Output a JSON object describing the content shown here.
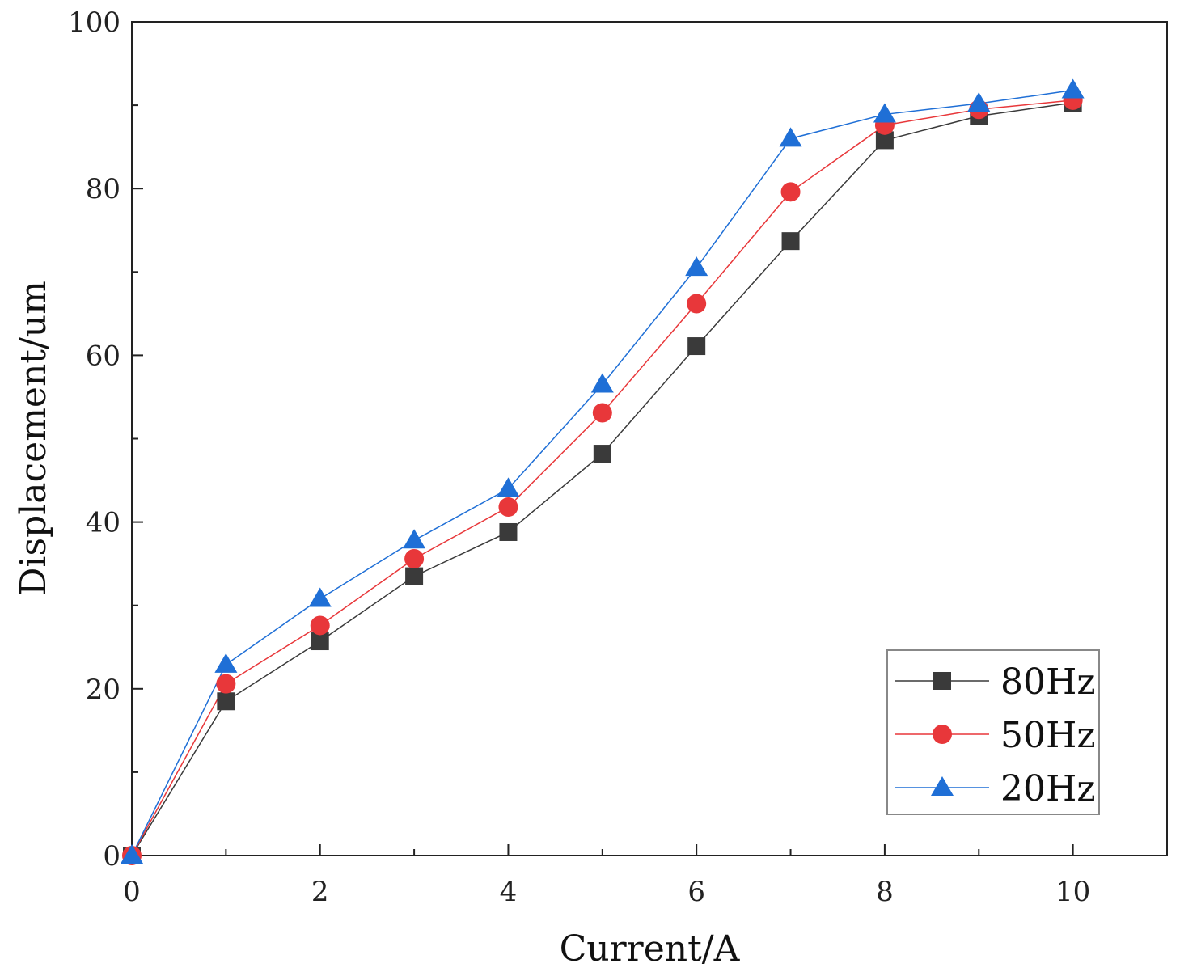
{
  "chart_data": {
    "type": "line",
    "title": "",
    "xlabel": "Current/A",
    "ylabel": "Displacement/um",
    "xlim": [
      0,
      11
    ],
    "ylim": [
      0,
      100
    ],
    "xticks": [
      0,
      2,
      4,
      6,
      8,
      10
    ],
    "yticks": [
      0,
      20,
      40,
      60,
      80,
      100
    ],
    "x": [
      0,
      1,
      2,
      3,
      4,
      5,
      6,
      7,
      8,
      9,
      10
    ],
    "legend_position": "bottom-right",
    "series": [
      {
        "name": "80Hz",
        "marker": "square",
        "color": "#3a3a3a",
        "values": [
          0,
          18.5,
          25.7,
          33.5,
          38.8,
          48.2,
          61.1,
          73.7,
          85.8,
          88.7,
          90.3
        ]
      },
      {
        "name": "50Hz",
        "marker": "circle",
        "color": "#e8373a",
        "values": [
          0,
          20.6,
          27.6,
          35.6,
          41.8,
          53.1,
          66.2,
          79.6,
          87.6,
          89.5,
          90.6
        ]
      },
      {
        "name": "20Hz",
        "marker": "triangle",
        "color": "#1f6fd6",
        "values": [
          0,
          22.9,
          30.8,
          37.8,
          44.0,
          56.5,
          70.5,
          86.0,
          88.9,
          90.2,
          91.8
        ]
      }
    ]
  }
}
